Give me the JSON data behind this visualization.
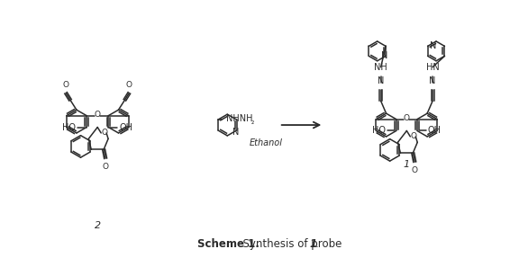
{
  "background_color": "#ffffff",
  "text_color": "#2a2a2a",
  "figsize": [
    5.66,
    2.87
  ],
  "dpi": 100,
  "caption_scheme": "Scheme 1.",
  "caption_rest": "  Synthesis of probe ",
  "caption_bold_end": "1",
  "caption_period": "."
}
